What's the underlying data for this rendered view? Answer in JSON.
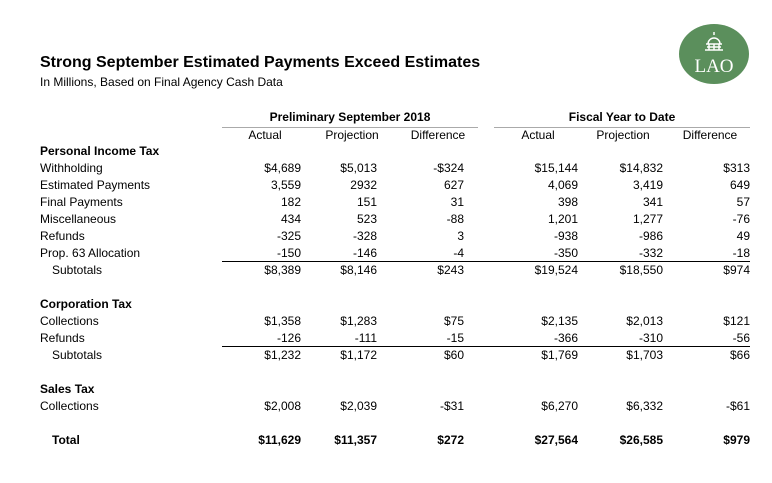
{
  "title": "Strong September Estimated Payments Exceed Estimates",
  "subtitle": "In Millions, Based on Final Agency Cash Data",
  "logo_text": "LAO",
  "groups": [
    "Preliminary September 2018",
    "Fiscal Year to Date"
  ],
  "columns": [
    "Actual",
    "Projection",
    "Difference",
    "Actual",
    "Projection",
    "Difference"
  ],
  "rows": [
    {
      "label": "Personal Income Tax",
      "type": "section",
      "values": []
    },
    {
      "label": "Withholding",
      "values": [
        "$4,689",
        "$5,013",
        "-$324",
        "$15,144",
        "$14,832",
        "$313"
      ]
    },
    {
      "label": "Estimated Payments",
      "values": [
        "3,559",
        "2932",
        "627",
        "4,069",
        "3,419",
        "649"
      ]
    },
    {
      "label": "Final Payments",
      "values": [
        "182",
        "151",
        "31",
        "398",
        "341",
        "57"
      ]
    },
    {
      "label": "Miscellaneous",
      "values": [
        "434",
        "523",
        "-88",
        "1,201",
        "1,277",
        "-76"
      ]
    },
    {
      "label": "Refunds",
      "values": [
        "-325",
        "-328",
        "3",
        "-938",
        "-986",
        "49"
      ]
    },
    {
      "label": "Prop. 63 Allocation",
      "values": [
        "-150",
        "-146",
        "-4",
        "-350",
        "-332",
        "-18"
      ]
    },
    {
      "label": "Subtotals",
      "type": "subtotal",
      "values": [
        "$8,389",
        "$8,146",
        "$243",
        "$19,524",
        "$18,550",
        "$974"
      ]
    },
    {
      "label": "Corporation Tax",
      "type": "section",
      "gap": true,
      "values": []
    },
    {
      "label": "Collections",
      "values": [
        "$1,358",
        "$1,283",
        "$75",
        "$2,135",
        "$2,013",
        "$121"
      ]
    },
    {
      "label": "Refunds",
      "values": [
        "-126",
        "-111",
        "-15",
        "-366",
        "-310",
        "-56"
      ]
    },
    {
      "label": "Subtotals",
      "type": "subtotal",
      "values": [
        "$1,232",
        "$1,172",
        "$60",
        "$1,769",
        "$1,703",
        "$66"
      ]
    },
    {
      "label": "Sales Tax",
      "type": "section",
      "gap": true,
      "values": []
    },
    {
      "label": "Collections",
      "values": [
        "$2,008",
        "$2,039",
        "-$31",
        "$6,270",
        "$6,332",
        "-$61"
      ]
    },
    {
      "label": "Total",
      "type": "total",
      "gap": true,
      "values": [
        "$11,629",
        "$11,357",
        "$272",
        "$27,564",
        "$26,585",
        "$979"
      ]
    }
  ]
}
